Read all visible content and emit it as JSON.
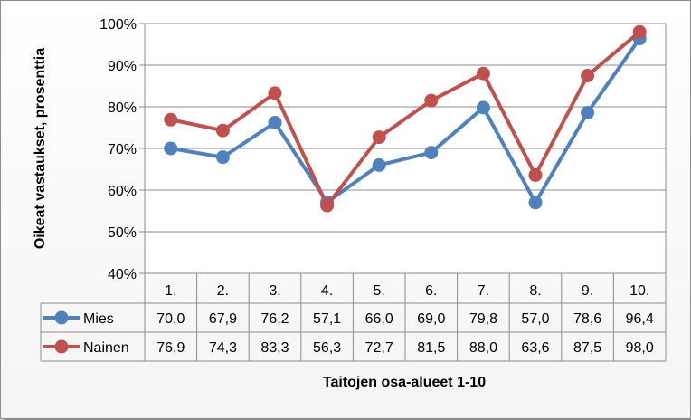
{
  "chart_data": {
    "type": "line",
    "xlabel": "Taitojen osa-alueet 1-10",
    "ylabel": "Oikeat vastaukset, prosenttia",
    "ylim": [
      40,
      100
    ],
    "y_ticks": [
      "40%",
      "50%",
      "60%",
      "70%",
      "80%",
      "90%",
      "100%"
    ],
    "grid": "horizontal",
    "legend": "data-table",
    "categories": [
      "1.",
      "2.",
      "3.",
      "4.",
      "5.",
      "6.",
      "7.",
      "8.",
      "9.",
      "10."
    ],
    "series": [
      {
        "name": "Mies",
        "color": "#4f81bd",
        "values": [
          70.0,
          67.9,
          76.2,
          57.1,
          66.0,
          69.0,
          79.8,
          57.0,
          78.6,
          96.4
        ],
        "labels": [
          "70,0",
          "67,9",
          "76,2",
          "57,1",
          "66,0",
          "69,0",
          "79,8",
          "57,0",
          "78,6",
          "96,4"
        ]
      },
      {
        "name": "Nainen",
        "color": "#c0504d",
        "values": [
          76.9,
          74.3,
          83.3,
          56.3,
          72.7,
          81.5,
          88.0,
          63.6,
          87.5,
          98.0
        ],
        "labels": [
          "76,9",
          "74,3",
          "83,3",
          "56,3",
          "72,7",
          "81,5",
          "88,0",
          "63,6",
          "87,5",
          "98,0"
        ]
      }
    ]
  }
}
